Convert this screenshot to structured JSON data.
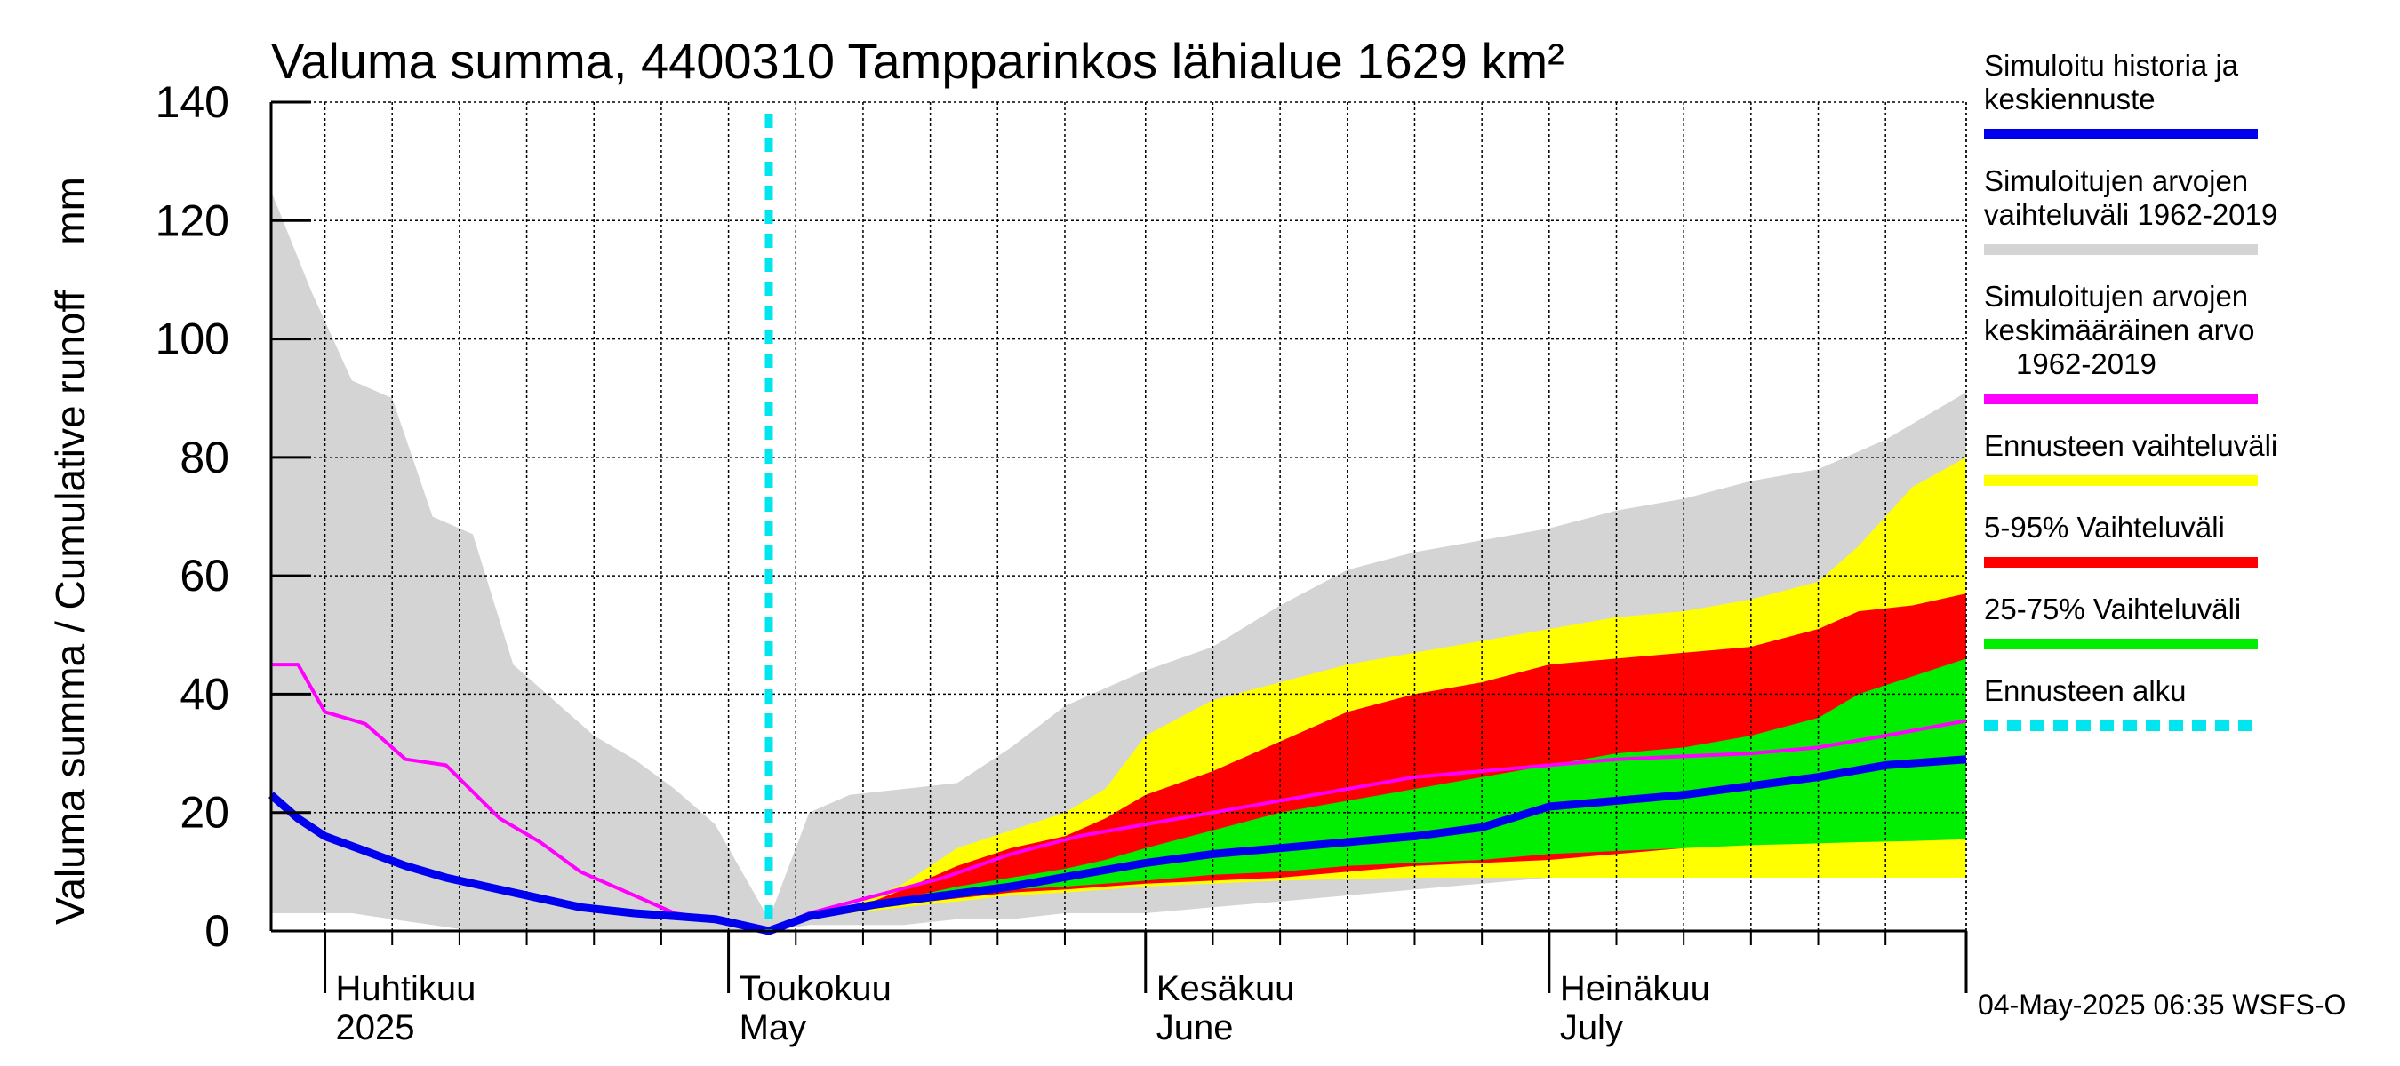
{
  "chart_data": {
    "type": "area",
    "title": "Valuma summa, 4400310 Tampparinkos lähialue 1629 km²",
    "ylabel": "Valuma summa / Cumulative runoff    mm",
    "xlabel": "",
    "ylim": [
      0,
      140
    ],
    "y_ticks": [
      0,
      20,
      40,
      60,
      80,
      100,
      120,
      140
    ],
    "grid": true,
    "legend_position": "right",
    "x_range": [
      "2025-03-28",
      "2025-08-01"
    ],
    "x_ticks": [
      "Huhtikuu 2025",
      "Toukokuu May",
      "Kesäkuu June",
      "Heinäkuu July"
    ],
    "month_labels": [
      {
        "date": "2025-04-01",
        "line1": "Huhtikuu",
        "line2": "2025"
      },
      {
        "date": "2025-05-01",
        "line1": "Toukokuu",
        "line2": "May"
      },
      {
        "date": "2025-06-01",
        "line1": "Kesäkuu",
        "line2": "June"
      },
      {
        "date": "2025-07-01",
        "line1": "Heinäkuu",
        "line2": "July"
      }
    ],
    "forecast_start": "2025-05-04",
    "series": [
      {
        "name": "Simuloitujen arvojen vaihteluväli 1962-2019",
        "kind": "band",
        "color": "#d4d4d4",
        "x": [
          "2025-03-28",
          "2025-03-31",
          "2025-04-03",
          "2025-04-06",
          "2025-04-09",
          "2025-04-12",
          "2025-04-15",
          "2025-04-18",
          "2025-04-21",
          "2025-04-24",
          "2025-04-27",
          "2025-04-30",
          "2025-05-02",
          "2025-05-03",
          "2025-05-04",
          "2025-05-07",
          "2025-05-10",
          "2025-05-14",
          "2025-05-18",
          "2025-05-22",
          "2025-05-26",
          "2025-06-01",
          "2025-06-06",
          "2025-06-11",
          "2025-06-16",
          "2025-06-21",
          "2025-06-26",
          "2025-07-01",
          "2025-07-06",
          "2025-07-11",
          "2025-07-16",
          "2025-07-21",
          "2025-07-26",
          "2025-08-01"
        ],
        "upper": [
          125,
          108,
          93,
          90,
          70,
          67,
          45,
          39,
          33,
          29,
          24,
          18,
          10,
          6,
          2,
          20,
          23,
          24,
          25,
          31,
          38,
          44,
          48,
          55,
          61,
          64,
          66,
          68,
          71,
          73,
          76,
          78,
          83,
          91
        ],
        "lower": [
          3,
          3,
          3,
          2,
          1,
          0,
          0,
          0,
          0,
          0,
          0,
          0,
          0,
          0,
          0,
          1,
          1,
          1,
          2,
          2,
          3,
          3,
          4,
          5,
          6,
          7,
          8,
          9,
          9,
          10,
          10,
          10,
          10,
          10
        ]
      },
      {
        "name": "Ennusteen vaihteluväli",
        "kind": "band",
        "color": "#ffff00",
        "x": [
          "2025-05-04",
          "2025-05-07",
          "2025-05-10",
          "2025-05-14",
          "2025-05-18",
          "2025-05-22",
          "2025-05-26",
          "2025-05-29",
          "2025-06-01",
          "2025-06-06",
          "2025-06-11",
          "2025-06-16",
          "2025-06-21",
          "2025-06-26",
          "2025-07-01",
          "2025-07-06",
          "2025-07-11",
          "2025-07-16",
          "2025-07-21",
          "2025-07-24",
          "2025-07-28",
          "2025-08-01"
        ],
        "upper": [
          0,
          2.5,
          4,
          8,
          14,
          17,
          20,
          24,
          33,
          39,
          42,
          45,
          47,
          49,
          51,
          53,
          54,
          56,
          59,
          65,
          75,
          80
        ],
        "lower": [
          0,
          2,
          3,
          4,
          5,
          6,
          6.5,
          7,
          7.5,
          8,
          8.5,
          8.8,
          9,
          9,
          9,
          9,
          9,
          9,
          9,
          9,
          9,
          9
        ]
      },
      {
        "name": "5-95% Vaihteluväli",
        "kind": "band",
        "color": "#ff0000",
        "x": [
          "2025-05-04",
          "2025-05-07",
          "2025-05-10",
          "2025-05-14",
          "2025-05-18",
          "2025-05-22",
          "2025-05-26",
          "2025-05-29",
          "2025-06-01",
          "2025-06-06",
          "2025-06-11",
          "2025-06-16",
          "2025-06-21",
          "2025-06-26",
          "2025-07-01",
          "2025-07-06",
          "2025-07-11",
          "2025-07-16",
          "2025-07-21",
          "2025-07-24",
          "2025-07-28",
          "2025-08-01"
        ],
        "upper": [
          0,
          2.3,
          3.5,
          7,
          11,
          14,
          16,
          19,
          23,
          27,
          32,
          37,
          40,
          42,
          45,
          46,
          47,
          48,
          51,
          54,
          55,
          57
        ],
        "lower": [
          0,
          2.1,
          3.2,
          4.5,
          5.5,
          6.5,
          7,
          7.5,
          8,
          8.5,
          9,
          10,
          11,
          11.5,
          12,
          13,
          14,
          15,
          16,
          18,
          19,
          20
        ]
      },
      {
        "name": "25-75% Vaihteluväli",
        "kind": "band",
        "color": "#00ee00",
        "x": [
          "2025-05-04",
          "2025-05-07",
          "2025-05-10",
          "2025-05-14",
          "2025-05-18",
          "2025-05-22",
          "2025-05-26",
          "2025-05-29",
          "2025-06-01",
          "2025-06-06",
          "2025-06-11",
          "2025-06-16",
          "2025-06-21",
          "2025-06-26",
          "2025-07-01",
          "2025-07-06",
          "2025-07-11",
          "2025-07-16",
          "2025-07-21",
          "2025-07-24",
          "2025-07-28",
          "2025-08-01"
        ],
        "upper": [
          0,
          2.2,
          3.3,
          5.5,
          7.5,
          9,
          10.5,
          12,
          14,
          17,
          20,
          22,
          24,
          26,
          28,
          30,
          31,
          33,
          36,
          40,
          43,
          46
        ],
        "lower": [
          0,
          2.1,
          3.1,
          4.8,
          6,
          7,
          7.5,
          8,
          8.5,
          9.5,
          10,
          11,
          11.5,
          12,
          13,
          13.5,
          14,
          14.5,
          14.8,
          15,
          15.2,
          15.5
        ]
      },
      {
        "name": "Simuloitujen arvojen keskimääräinen arvo 1962-2019",
        "kind": "line",
        "color": "#ff00ff",
        "x": [
          "2025-03-28",
          "2025-03-30",
          "2025-04-01",
          "2025-04-04",
          "2025-04-07",
          "2025-04-10",
          "2025-04-14",
          "2025-04-17",
          "2025-04-20",
          "2025-04-24",
          "2025-04-27",
          "2025-04-30",
          "2025-05-02",
          "2025-05-04",
          "2025-05-07",
          "2025-05-12",
          "2025-05-17",
          "2025-05-22",
          "2025-05-27",
          "2025-06-01",
          "2025-06-06",
          "2025-06-11",
          "2025-06-16",
          "2025-06-21",
          "2025-06-26",
          "2025-07-01",
          "2025-07-06",
          "2025-07-11",
          "2025-07-16",
          "2025-07-21",
          "2025-07-26",
          "2025-08-01"
        ],
        "values": [
          45,
          45,
          37,
          35,
          29,
          28,
          19,
          15,
          10,
          6,
          3,
          2,
          1,
          0,
          3,
          6,
          9,
          13,
          16,
          18,
          20,
          22,
          24,
          26,
          27,
          28,
          29,
          29.5,
          30,
          31,
          33,
          35.5
        ]
      },
      {
        "name": "Simuloitu historia ja keskiennuste",
        "kind": "line",
        "color": "#0000ee",
        "x": [
          "2025-03-28",
          "2025-03-30",
          "2025-04-01",
          "2025-04-04",
          "2025-04-07",
          "2025-04-10",
          "2025-04-14",
          "2025-04-17",
          "2025-04-20",
          "2025-04-24",
          "2025-04-27",
          "2025-04-30",
          "2025-05-02",
          "2025-05-04",
          "2025-05-07",
          "2025-05-12",
          "2025-05-17",
          "2025-05-22",
          "2025-05-27",
          "2025-06-01",
          "2025-06-06",
          "2025-06-11",
          "2025-06-16",
          "2025-06-21",
          "2025-06-26",
          "2025-07-01",
          "2025-07-06",
          "2025-07-11",
          "2025-07-16",
          "2025-07-21",
          "2025-07-26",
          "2025-08-01"
        ],
        "values": [
          23,
          19,
          16,
          13.5,
          11,
          9,
          7,
          5.5,
          4,
          3,
          2.5,
          2,
          1,
          0,
          2.5,
          4.5,
          6,
          7.5,
          9.5,
          11.5,
          13,
          14,
          15,
          16,
          17.5,
          21,
          22,
          23,
          24.5,
          26,
          28,
          29
        ]
      }
    ],
    "legend": [
      {
        "label": "Simuloitu historia ja keskiennuste",
        "color": "#0000ee",
        "style": "solid"
      },
      {
        "label": "Simuloitujen arvojen vaihteluväli 1962-2019",
        "color": "#d4d4d4",
        "style": "solid"
      },
      {
        "label": "Simuloitujen arvojen keskimääräinen arvo 1962-2019",
        "color": "#ff00ff",
        "style": "solid"
      },
      {
        "label": "Ennusteen vaihteluväli",
        "color": "#ffff00",
        "style": "solid"
      },
      {
        "label": "5-95% Vaihteluväli",
        "color": "#ff0000",
        "style": "solid"
      },
      {
        "label": "25-75% Vaihteluväli",
        "color": "#00ee00",
        "style": "solid"
      },
      {
        "label": "Ennusteen alku",
        "color": "#00e5ee",
        "style": "dashed"
      }
    ],
    "legend_lines": [
      [
        "Simuloitu historia ja",
        "keskiennuste"
      ],
      [
        "Simuloitujen arvojen",
        "vaihteluväli 1962-2019"
      ],
      [
        "Simuloitujen arvojen",
        "keskimääräinen arvo",
        "1962-2019"
      ],
      [
        "Ennusteen vaihteluväli"
      ],
      [
        "5-95% Vaihteluväli"
      ],
      [
        "25-75% Vaihteluväli"
      ],
      [
        "Ennusteen alku"
      ]
    ],
    "timestamp": "04-May-2025 06:35 WSFS-O"
  }
}
